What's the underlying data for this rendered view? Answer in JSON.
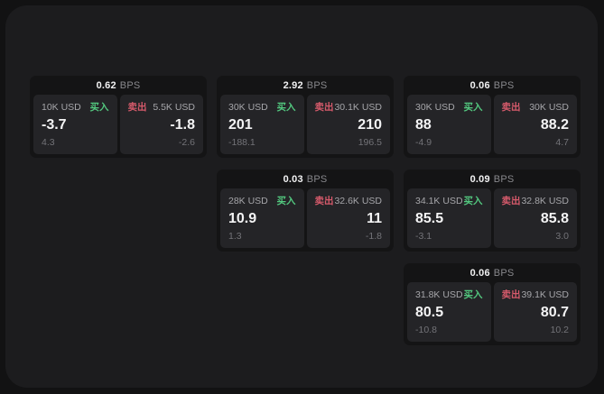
{
  "labels": {
    "buy": "买入",
    "sell": "卖出",
    "bps_suffix": "BPS"
  },
  "colors": {
    "buy_green": "#53c87f",
    "sell_red": "#d65a6b",
    "window_bg": "#1c1c1e",
    "card_bg": "#141415",
    "tile_bg": "#242427"
  },
  "cards": [
    {
      "row": 1,
      "col": 1,
      "bps": "0.62",
      "buy": {
        "amount": "10K USD",
        "price": "-3.7",
        "delta": "4.3"
      },
      "sell": {
        "amount": "5.5K USD",
        "price": "-1.8",
        "delta": "-2.6"
      }
    },
    {
      "row": 1,
      "col": 2,
      "bps": "2.92",
      "buy": {
        "amount": "30K USD",
        "price": "201",
        "delta": "-188.1"
      },
      "sell": {
        "amount": "30.1K USD",
        "price": "210",
        "delta": "196.5"
      }
    },
    {
      "row": 1,
      "col": 3,
      "bps": "0.06",
      "buy": {
        "amount": "30K USD",
        "price": "88",
        "delta": "-4.9"
      },
      "sell": {
        "amount": "30K USD",
        "price": "88.2",
        "delta": "4.7"
      }
    },
    {
      "row": 2,
      "col": 2,
      "bps": "0.03",
      "buy": {
        "amount": "28K USD",
        "price": "10.9",
        "delta": "1.3"
      },
      "sell": {
        "amount": "32.6K USD",
        "price": "11",
        "delta": "-1.8"
      }
    },
    {
      "row": 2,
      "col": 3,
      "bps": "0.09",
      "buy": {
        "amount": "34.1K USD",
        "price": "85.5",
        "delta": "-3.1"
      },
      "sell": {
        "amount": "32.8K USD",
        "price": "85.8",
        "delta": "3.0"
      }
    },
    {
      "row": 3,
      "col": 3,
      "bps": "0.06",
      "buy": {
        "amount": "31.8K USD",
        "price": "80.5",
        "delta": "-10.8"
      },
      "sell": {
        "amount": "39.1K USD",
        "price": "80.7",
        "delta": "10.2"
      }
    }
  ]
}
